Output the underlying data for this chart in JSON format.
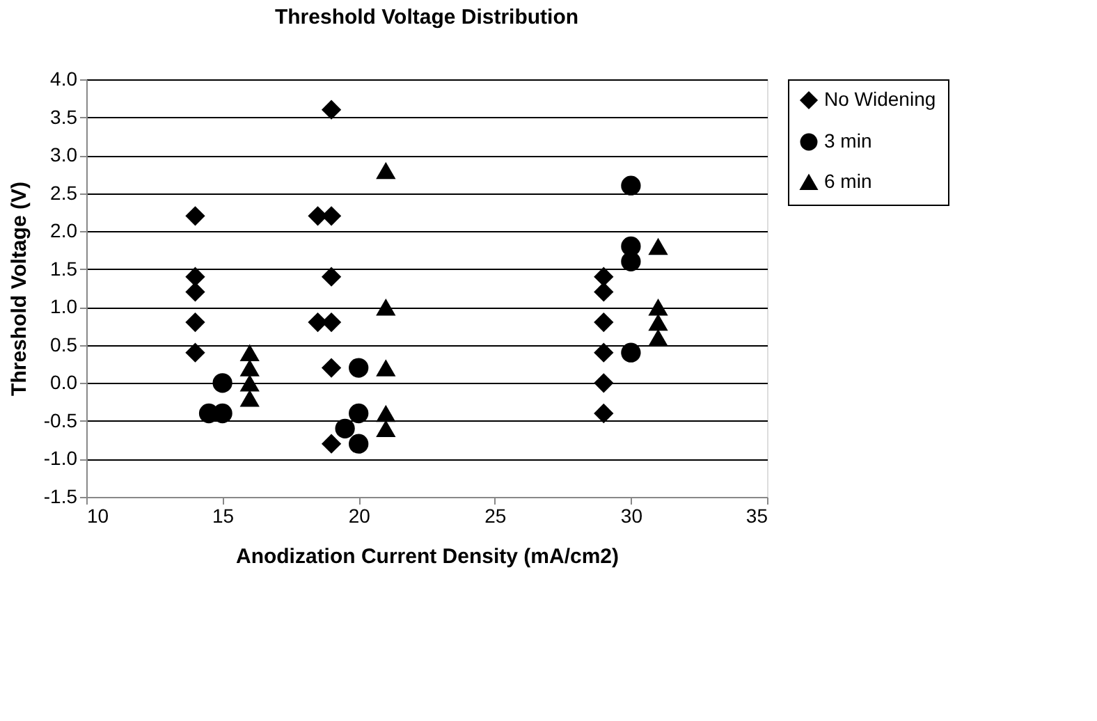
{
  "chart_data": {
    "type": "scatter",
    "title": "Threshold Voltage Distribution",
    "xlabel": "Anodization Current Density (mA/cm2)",
    "ylabel": "Threshold Voltage (V)",
    "xlim": [
      10,
      35
    ],
    "xticks": [
      10,
      15,
      20,
      25,
      30,
      35
    ],
    "ylim": [
      -1.5,
      4.0
    ],
    "yticks": [
      {
        "value": -1.5,
        "label": "-1.5"
      },
      {
        "value": -1.0,
        "label": "-1.0"
      },
      {
        "value": -0.5,
        "label": "-0.5"
      },
      {
        "value": 0.0,
        "label": "0.0"
      },
      {
        "value": 0.5,
        "label": "0.5"
      },
      {
        "value": 1.0,
        "label": "1.0"
      },
      {
        "value": 1.5,
        "label": "1.5"
      },
      {
        "value": 2.0,
        "label": "2.0"
      },
      {
        "value": 2.5,
        "label": "2.5"
      },
      {
        "value": 3.0,
        "label": "3.0"
      },
      {
        "value": 3.5,
        "label": "3.5"
      },
      {
        "value": 4.0,
        "label": "4.0"
      }
    ],
    "grid": "y",
    "legend": "right",
    "series": [
      {
        "name": "No Widening",
        "color": "#000000",
        "marker": "diamond",
        "x": [
          14,
          14,
          14,
          14,
          14,
          18.5,
          18.5,
          19,
          19,
          19,
          19,
          19,
          19,
          29,
          29,
          29,
          29,
          29,
          29
        ],
        "values": [
          2.2,
          1.4,
          1.2,
          0.8,
          0.4,
          2.2,
          0.8,
          3.6,
          2.2,
          1.4,
          0.8,
          0.2,
          -0.8,
          1.4,
          1.2,
          0.8,
          0.4,
          0.0,
          -0.4
        ]
      },
      {
        "name": "3 min",
        "color": "#000000",
        "marker": "circle",
        "x": [
          14.5,
          15,
          15,
          20,
          20,
          19.5,
          20,
          30,
          30,
          30,
          30
        ],
        "values": [
          -0.4,
          0.0,
          -0.4,
          0.2,
          -0.4,
          -0.6,
          -0.8,
          2.6,
          1.8,
          1.6,
          0.4
        ]
      },
      {
        "name": "6 min",
        "color": "#000000",
        "marker": "triangle",
        "x": [
          16,
          16,
          16,
          16,
          21,
          21,
          21,
          21,
          21,
          31,
          31,
          31,
          31
        ],
        "values": [
          0.4,
          0.2,
          0.0,
          -0.2,
          2.8,
          1.0,
          0.2,
          -0.4,
          -0.6,
          1.8,
          1.0,
          0.8,
          0.6
        ]
      }
    ]
  }
}
